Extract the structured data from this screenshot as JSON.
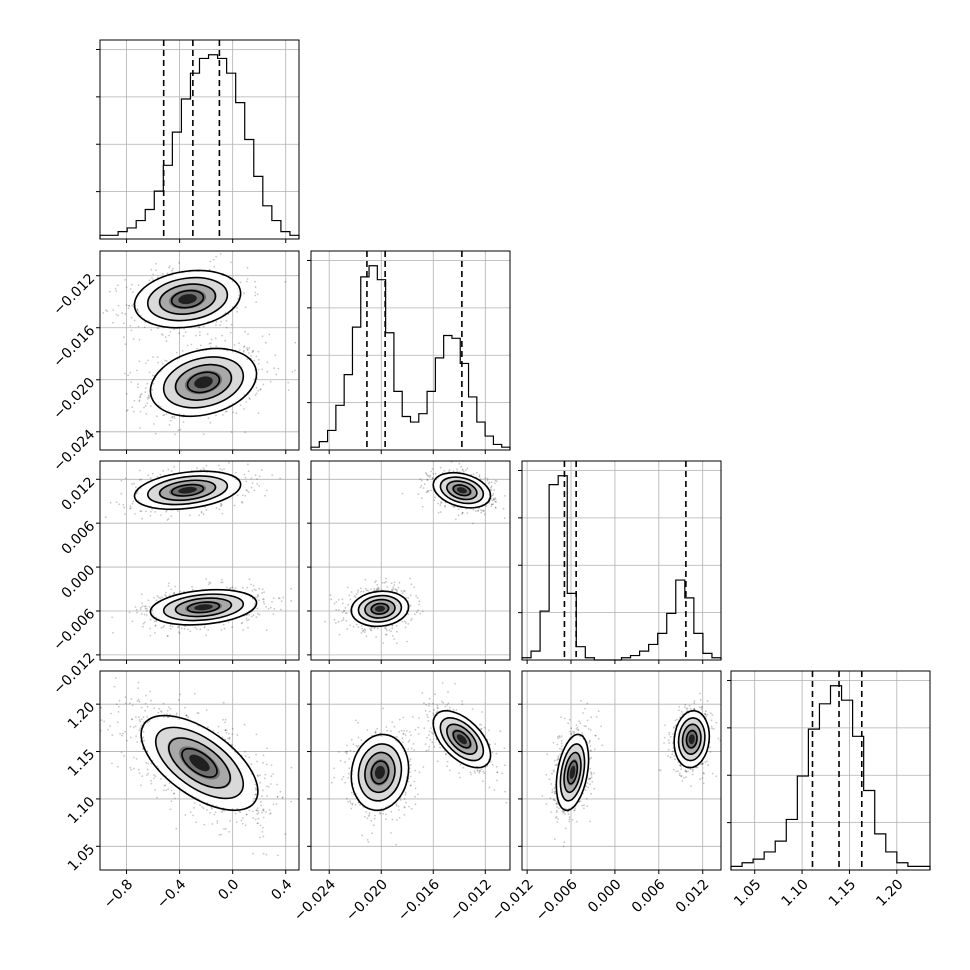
{
  "chart_data": {
    "type": "corner",
    "parameters": [
      {
        "ticks": [
          -0.8,
          -0.4,
          0.0,
          0.4
        ],
        "tick_labels": [
          "−0.8",
          "−0.4",
          "0.0",
          "0.4"
        ],
        "range": [
          -1.0,
          0.5
        ]
      },
      {
        "ticks": [
          -0.024,
          -0.02,
          -0.016,
          -0.012
        ],
        "tick_labels": [
          "−0.024",
          "−0.020",
          "−0.016",
          "−0.012"
        ],
        "range": [
          -0.0254,
          -0.0101
        ]
      },
      {
        "ticks": [
          -0.012,
          -0.006,
          0.0,
          0.006,
          0.012
        ],
        "tick_labels": [
          "−0.012",
          "−0.006",
          "0.000",
          "0.006",
          "0.012"
        ],
        "range": [
          -0.0127,
          0.0145
        ]
      },
      {
        "ticks": [
          1.05,
          1.1,
          1.15,
          1.2
        ],
        "tick_labels": [
          "1.05",
          "1.10",
          "1.15",
          "1.20"
        ],
        "range": [
          1.025,
          1.235
        ]
      }
    ],
    "quantiles": [
      [
        -0.52,
        -0.3,
        -0.1
      ],
      [
        -0.0211,
        -0.0197,
        -0.0138
      ],
      [
        -0.0069,
        -0.0053,
        0.0097
      ],
      [
        1.111,
        1.139,
        1.163
      ]
    ],
    "histograms": [
      {
        "counts": [
          1,
          1,
          2,
          3,
          5,
          8,
          13,
          20,
          29,
          38,
          45,
          49,
          50,
          49,
          45,
          37,
          27,
          17,
          9,
          5,
          2,
          1
        ]
      },
      {
        "counts": [
          1,
          3,
          7,
          16,
          27,
          44,
          62,
          66,
          61,
          42,
          21,
          12,
          10,
          13,
          21,
          33,
          41,
          40,
          31,
          19,
          10,
          5,
          2,
          1
        ]
      },
      {
        "counts": [
          1,
          4,
          22,
          79,
          83,
          30,
          6,
          1,
          0,
          0,
          0,
          1,
          2,
          4,
          7,
          12,
          21,
          36,
          28,
          12,
          3,
          1
        ]
      },
      {
        "counts": [
          1,
          2,
          3,
          5,
          8,
          14,
          26,
          39,
          46,
          51,
          47,
          37,
          22,
          10,
          5,
          2,
          1,
          1
        ]
      }
    ],
    "modes": [
      [
        {
          "mean": [
            -0.22,
            -0.0202
          ],
          "sd": [
            0.2,
            0.0013
          ],
          "rho": 0.25,
          "weight": 0.55
        },
        {
          "mean": [
            -0.34,
            -0.0138
          ],
          "sd": [
            0.2,
            0.0011
          ],
          "rho": 0.2,
          "weight": 0.45
        }
      ],
      [
        {
          "mean": [
            -0.22,
            -0.0055
          ],
          "sd": [
            0.2,
            0.0012
          ],
          "rho": 0.25,
          "weight": 0.55
        },
        {
          "mean": [
            -0.34,
            0.0105
          ],
          "sd": [
            0.2,
            0.0013
          ],
          "rho": 0.3,
          "weight": 0.45
        }
      ],
      [
        {
          "mean": [
            -0.0201,
            -0.0057
          ],
          "sd": [
            0.0011,
            0.0012
          ],
          "rho": 0.1,
          "weight": 0.55
        },
        {
          "mean": [
            -0.0138,
            0.0105
          ],
          "sd": [
            0.0011,
            0.0012
          ],
          "rho": -0.3,
          "weight": 0.45
        }
      ],
      [
        {
          "mean": [
            -0.25,
            1.138
          ],
          "sd": [
            0.22,
            0.025
          ],
          "rho": -0.6,
          "weight": 1.0
        }
      ],
      [
        {
          "mean": [
            -0.0201,
            1.128
          ],
          "sd": [
            0.0011,
            0.02
          ],
          "rho": 0.1,
          "weight": 0.55
        },
        {
          "mean": [
            -0.0138,
            1.163
          ],
          "sd": [
            0.0011,
            0.015
          ],
          "rho": -0.55,
          "weight": 0.45
        }
      ],
      [
        {
          "mean": [
            -0.0058,
            1.128
          ],
          "sd": [
            0.0011,
            0.02
          ],
          "rho": 0.35,
          "weight": 0.55
        },
        {
          "mean": [
            0.0105,
            1.163
          ],
          "sd": [
            0.0012,
            0.015
          ],
          "rho": 0.1,
          "weight": 0.45
        }
      ]
    ]
  }
}
